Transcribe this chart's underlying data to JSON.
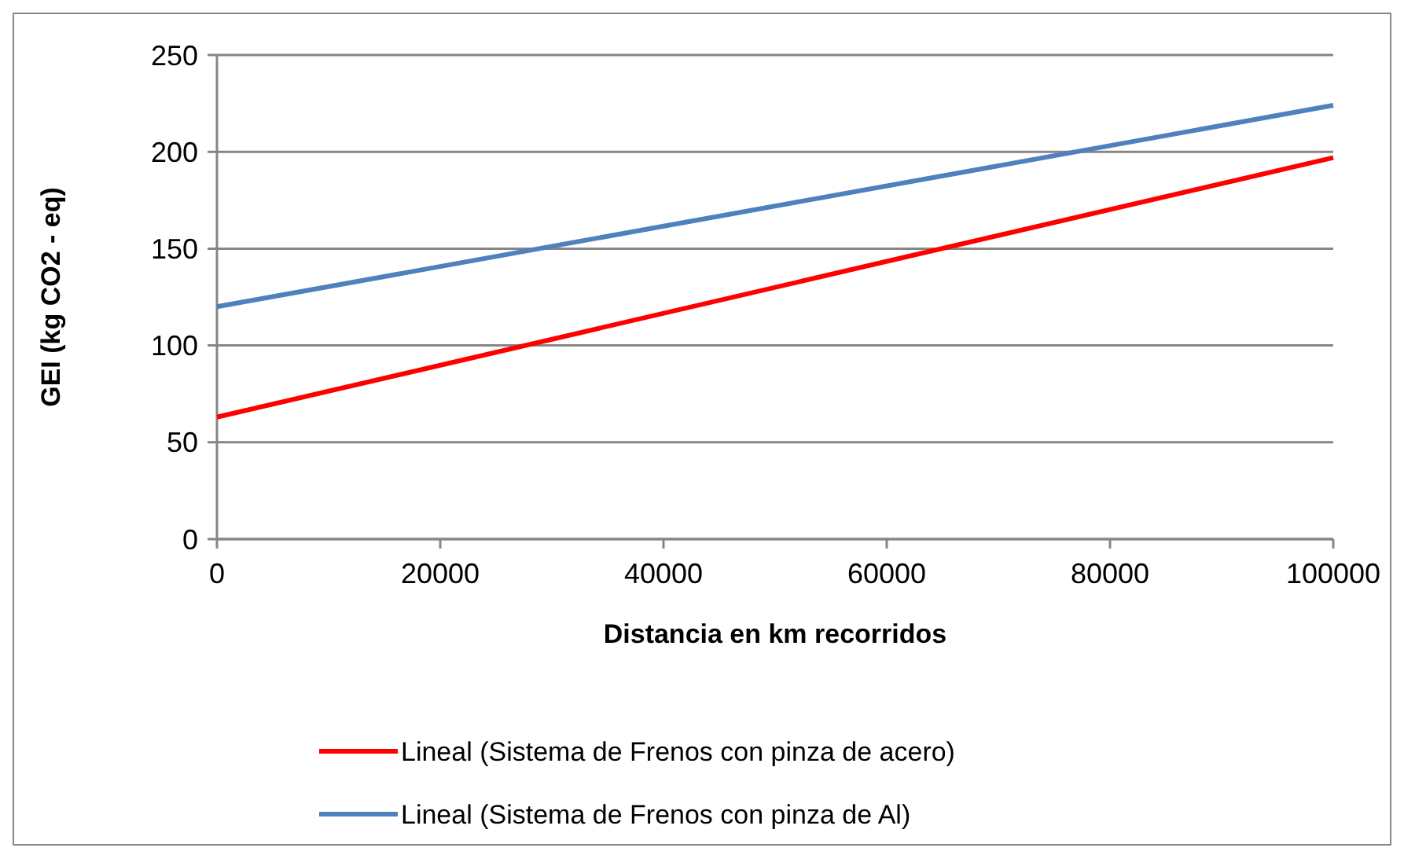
{
  "chart_data": {
    "type": "line",
    "xlabel": "Distancia en km recorridos",
    "ylabel": "GEI (kg CO2 - eq)",
    "x": [
      0,
      100000
    ],
    "series": [
      {
        "name": "Lineal (Sistema de Frenos con pinza de acero)",
        "color": "#ff0000",
        "values": [
          63,
          197
        ]
      },
      {
        "name": "Lineal (Sistema de Frenos con pinza de Al)",
        "color": "#4f81bd",
        "values": [
          120,
          224
        ]
      }
    ],
    "xlim": [
      0,
      100000
    ],
    "xticks": [
      0,
      20000,
      40000,
      60000,
      80000,
      100000
    ],
    "ylim": [
      0,
      250
    ],
    "yticks": [
      0,
      50,
      100,
      150,
      200,
      250
    ],
    "grid": "y",
    "legend": "bottom",
    "marker": "none",
    "line_style": "solid"
  }
}
